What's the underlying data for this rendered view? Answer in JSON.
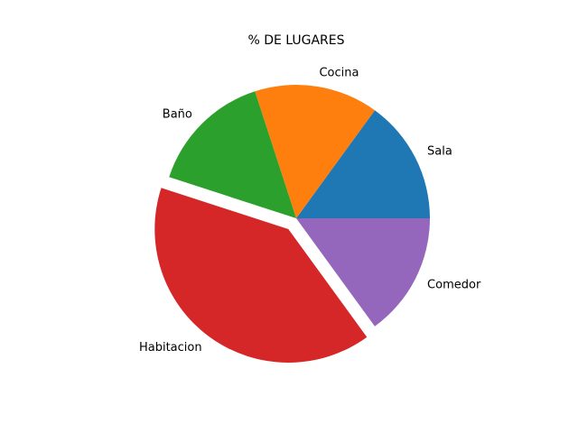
{
  "chart_data": {
    "type": "pie",
    "title": "% DE LUGARES",
    "categories": [
      "Sala",
      "Cocina",
      "Baño",
      "Habitacion",
      "Comedor"
    ],
    "values": [
      15,
      15,
      15,
      40,
      15
    ],
    "colors": [
      "#1f77b4",
      "#ff7f0e",
      "#2ca02c",
      "#d62728",
      "#9467bd"
    ],
    "explode": [
      0,
      0,
      0,
      0.1,
      0
    ],
    "start_angle": 0,
    "direction": "counterclockwise",
    "legend": false
  }
}
